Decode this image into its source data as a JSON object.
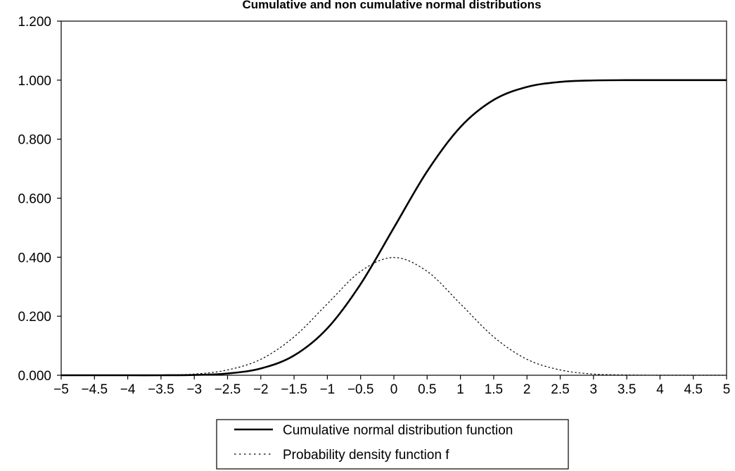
{
  "chart_data": {
    "type": "line",
    "title": "Cumulative and non cumulative normal distributions",
    "xlabel": "",
    "ylabel": "",
    "x_ticks": [
      "−5",
      "−4.5",
      "−4",
      "−3.5",
      "−3",
      "−2.5",
      "−2",
      "−1.5",
      "−1",
      "−0.5",
      "0",
      "0.5",
      "1",
      "1.5",
      "2",
      "2.5",
      "3",
      "3.5",
      "4",
      "4.5",
      "5"
    ],
    "y_ticks": [
      "0.000",
      "0.200",
      "0.400",
      "0.600",
      "0.800",
      "1.000",
      "1.200"
    ],
    "xlim": [
      -5,
      5
    ],
    "ylim": [
      0,
      1.2
    ],
    "grid": false,
    "legend_position": "bottom-center",
    "x": [
      -5,
      -4.5,
      -4,
      -3.5,
      -3,
      -2.5,
      -2,
      -1.5,
      -1,
      -0.5,
      0,
      0.5,
      1,
      1.5,
      2,
      2.5,
      3,
      3.5,
      4,
      4.5,
      5
    ],
    "series": [
      {
        "name": "Cumulative normal distribution function",
        "style": "solid",
        "values": [
          0.0,
          0.0,
          0.0,
          0.0,
          0.001,
          0.006,
          0.023,
          0.067,
          0.159,
          0.309,
          0.5,
          0.691,
          0.841,
          0.933,
          0.977,
          0.994,
          0.999,
          1.0,
          1.0,
          1.0,
          1.0
        ]
      },
      {
        "name": "Probability density function f",
        "style": "dotted",
        "values": [
          0.0,
          0.0,
          0.0,
          0.001,
          0.004,
          0.018,
          0.054,
          0.13,
          0.242,
          0.352,
          0.399,
          0.352,
          0.242,
          0.13,
          0.054,
          0.018,
          0.004,
          0.001,
          0.0,
          0.0,
          0.0
        ]
      }
    ]
  }
}
